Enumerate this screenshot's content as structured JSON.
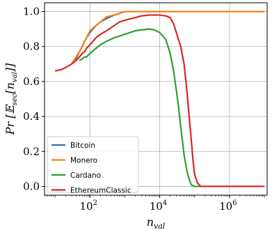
{
  "chart_data": {
    "type": "line",
    "xlabel_main": "n",
    "xlabel_sub": "val",
    "ylabel_prefix": "Pr [",
    "ylabel_E": "𝔼",
    "ylabel_E_sub": "sec",
    "ylabel_inner": "[n",
    "ylabel_inner_sub": "val",
    "ylabel_suffix": "]]",
    "xscale": "log",
    "xlim": [
      5,
      12000000
    ],
    "ylim": [
      -0.05,
      1.05
    ],
    "grid": true,
    "legend_position": "bottom-left",
    "x_ticks": [
      {
        "value": 100,
        "base": "10",
        "exp": "2"
      },
      {
        "value": 10000,
        "base": "10",
        "exp": "4"
      },
      {
        "value": 1000000,
        "base": "10",
        "exp": "6"
      }
    ],
    "y_ticks": [
      {
        "value": 0.0,
        "label": "0.0"
      },
      {
        "value": 0.2,
        "label": "0.2"
      },
      {
        "value": 0.4,
        "label": "0.4"
      },
      {
        "value": 0.6,
        "label": "0.6"
      },
      {
        "value": 0.8,
        "label": "0.8"
      },
      {
        "value": 1.0,
        "label": "1.0"
      }
    ],
    "series": [
      {
        "name": "Bitcoin",
        "color": "#1f77b4",
        "points": [
          [
            30,
            0.7
          ],
          [
            40,
            0.73
          ],
          [
            50,
            0.77
          ],
          [
            60,
            0.8
          ],
          [
            70,
            0.83
          ],
          [
            80,
            0.85
          ],
          [
            100,
            0.88
          ],
          [
            150,
            0.92
          ],
          [
            200,
            0.94
          ],
          [
            300,
            0.96
          ],
          [
            500,
            0.98
          ],
          [
            700,
            0.99
          ],
          [
            1000,
            1.0
          ],
          [
            3000,
            1.0
          ],
          [
            10000,
            1.0
          ],
          [
            100000,
            1.0
          ],
          [
            1000000,
            1.0
          ],
          [
            10000000,
            1.0
          ]
        ]
      },
      {
        "name": "Monero",
        "color": "#ff7f0e",
        "points": [
          [
            30,
            0.7
          ],
          [
            40,
            0.74
          ],
          [
            50,
            0.77
          ],
          [
            60,
            0.8
          ],
          [
            70,
            0.83
          ],
          [
            80,
            0.85
          ],
          [
            100,
            0.89
          ],
          [
            150,
            0.92
          ],
          [
            200,
            0.94
          ],
          [
            300,
            0.97
          ],
          [
            500,
            0.98
          ],
          [
            700,
            0.99
          ],
          [
            1000,
            1.0
          ],
          [
            3000,
            1.0
          ],
          [
            10000,
            1.0
          ],
          [
            100000,
            1.0
          ],
          [
            1000000,
            1.0
          ],
          [
            10000000,
            1.0
          ]
        ]
      },
      {
        "name": "Cardano",
        "color": "#2ca02c",
        "points": [
          [
            50,
            0.72
          ],
          [
            60,
            0.73
          ],
          [
            70,
            0.74
          ],
          [
            80,
            0.74
          ],
          [
            100,
            0.76
          ],
          [
            150,
            0.79
          ],
          [
            200,
            0.81
          ],
          [
            300,
            0.83
          ],
          [
            500,
            0.85
          ],
          [
            700,
            0.86
          ],
          [
            1000,
            0.87
          ],
          [
            2000,
            0.89
          ],
          [
            3000,
            0.895
          ],
          [
            5000,
            0.9
          ],
          [
            7000,
            0.895
          ],
          [
            10000,
            0.88
          ],
          [
            15000,
            0.84
          ],
          [
            20000,
            0.76
          ],
          [
            25000,
            0.66
          ],
          [
            30000,
            0.55
          ],
          [
            35000,
            0.45
          ],
          [
            40000,
            0.34
          ],
          [
            45000,
            0.26
          ],
          [
            50000,
            0.18
          ],
          [
            60000,
            0.09
          ],
          [
            70000,
            0.04
          ],
          [
            80000,
            0.01
          ],
          [
            100000,
            0.0
          ],
          [
            1000000,
            0.0
          ],
          [
            10000000,
            0.0
          ]
        ]
      },
      {
        "name": "EthereumClassic",
        "color": "#d62728",
        "points": [
          [
            10,
            0.66
          ],
          [
            13,
            0.665
          ],
          [
            16,
            0.67
          ],
          [
            20,
            0.68
          ],
          [
            25,
            0.69
          ],
          [
            30,
            0.7
          ],
          [
            40,
            0.72
          ],
          [
            50,
            0.74
          ],
          [
            60,
            0.76
          ],
          [
            70,
            0.77
          ],
          [
            80,
            0.79
          ],
          [
            100,
            0.81
          ],
          [
            150,
            0.85
          ],
          [
            200,
            0.87
          ],
          [
            300,
            0.89
          ],
          [
            500,
            0.92
          ],
          [
            700,
            0.94
          ],
          [
            1000,
            0.95
          ],
          [
            2000,
            0.965
          ],
          [
            3000,
            0.975
          ],
          [
            5000,
            0.98
          ],
          [
            10000,
            0.98
          ],
          [
            15000,
            0.975
          ],
          [
            20000,
            0.965
          ],
          [
            25000,
            0.93
          ],
          [
            30000,
            0.88
          ],
          [
            40000,
            0.8
          ],
          [
            50000,
            0.7
          ],
          [
            60000,
            0.55
          ],
          [
            70000,
            0.4
          ],
          [
            80000,
            0.27
          ],
          [
            90000,
            0.15
          ],
          [
            100000,
            0.07
          ],
          [
            120000,
            0.02
          ],
          [
            150000,
            0.0
          ],
          [
            1000000,
            0.0
          ],
          [
            10000000,
            0.0
          ]
        ]
      }
    ]
  }
}
